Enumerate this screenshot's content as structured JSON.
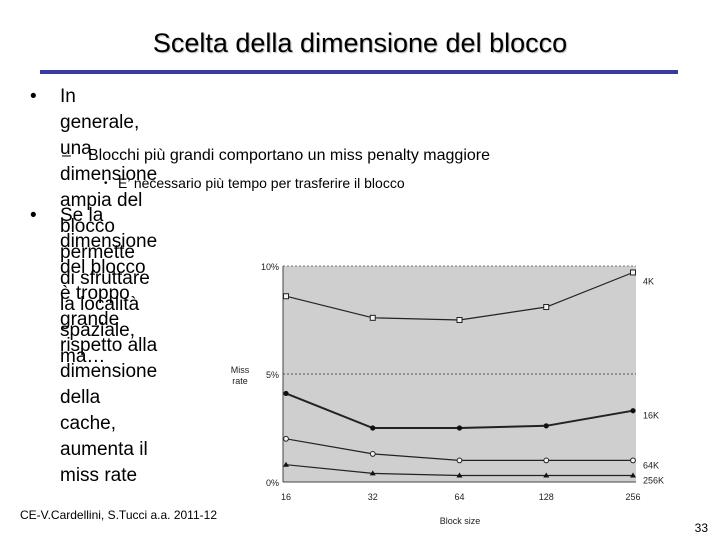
{
  "slide": {
    "title": "Scelta della dimensione del blocco",
    "bullets": [
      {
        "mark": "•",
        "lines": [
          "In generale, una dimensione ampia del blocco permette",
          "di sfruttare la località spaziale, ma…"
        ]
      },
      {
        "mark": "•",
        "lines": [
          "Se la dimensione del blocco è troppo grande rispetto alla",
          "dimensione della cache, aumenta il miss rate"
        ]
      }
    ],
    "sub_bullet": {
      "mark": "–",
      "text": "Blocchi più grandi comportano un miss penalty maggiore"
    },
    "sub_sub_bullet": {
      "mark": "•",
      "text": "E’ necessario più tempo per trasferire il blocco"
    },
    "footer_left": "CE-V.Cardellini, S.Tucci a.a. 2011-12",
    "page_number": "33"
  },
  "chart_data": {
    "type": "line",
    "categories": [
      "16",
      "32",
      "64",
      "128",
      "256"
    ],
    "xlabel": "Block size",
    "ylabel_lines": [
      "Miss",
      "rate"
    ],
    "y_ticks": [
      "0%",
      "5%",
      "10%"
    ],
    "ylim": [
      0,
      10
    ],
    "grid": "dotted horizontal line at 5%",
    "background": "#cfcfcf",
    "series": [
      {
        "name": "4K",
        "values": [
          8.6,
          7.6,
          7.5,
          8.1,
          9.7
        ],
        "marker": "square"
      },
      {
        "name": "16K",
        "values": [
          4.1,
          2.5,
          2.5,
          2.6,
          3.3
        ],
        "marker": "circle"
      },
      {
        "name": "64K",
        "values": [
          2.0,
          1.3,
          1.0,
          1.0,
          1.0
        ],
        "marker": "circle-open"
      },
      {
        "name": "256K",
        "values": [
          0.8,
          0.4,
          0.3,
          0.3,
          0.3
        ],
        "marker": "triangle"
      }
    ]
  }
}
